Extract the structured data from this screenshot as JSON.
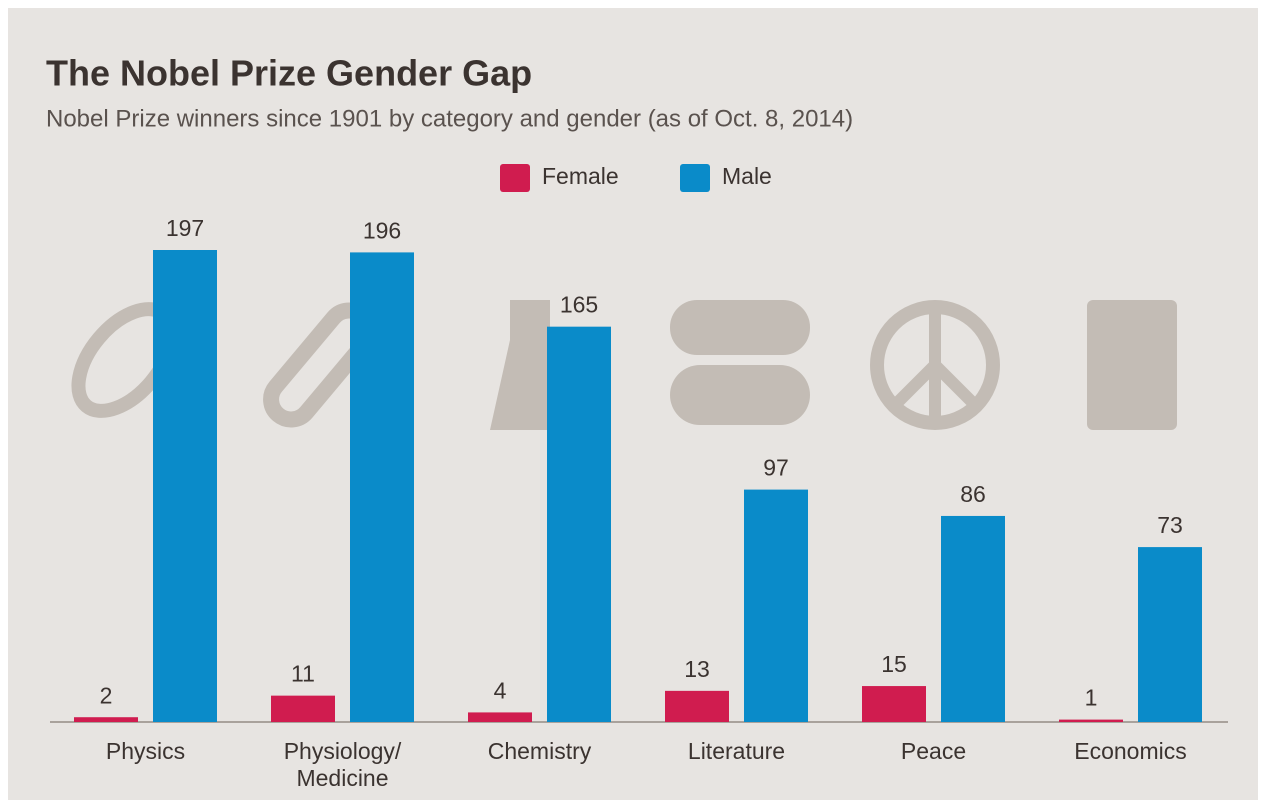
{
  "chart_data": {
    "type": "bar",
    "title": "The Nobel Prize Gender Gap",
    "subtitle": "Nobel Prize winners since 1901 by category and gender (as of Oct. 8, 2014)",
    "categories": [
      "Physics",
      "Physiology/\nMedicine",
      "Chemistry",
      "Literature",
      "Peace",
      "Economics"
    ],
    "series": [
      {
        "name": "Female",
        "color": "#d01c4f",
        "values": [
          2,
          11,
          4,
          13,
          15,
          1
        ]
      },
      {
        "name": "Male",
        "color": "#0a8bc9",
        "values": [
          197,
          196,
          165,
          97,
          86,
          73
        ]
      }
    ],
    "legend": "top"
  }
}
